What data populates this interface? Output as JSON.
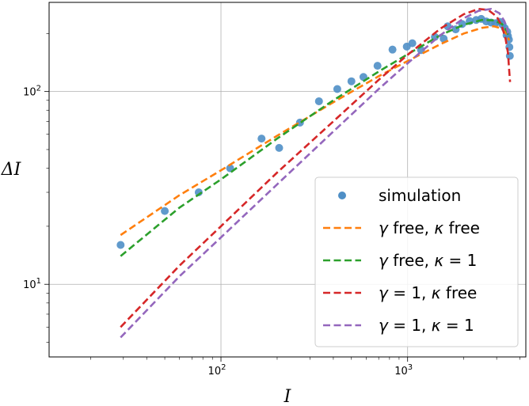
{
  "chart_data": {
    "type": "scatter",
    "xscale": "log",
    "yscale": "log",
    "xlim": [
      12,
      4300
    ],
    "ylim": [
      4.2,
      290
    ],
    "grid": true,
    "xlabel": "I",
    "ylabel": "ΔI",
    "legend_position": "lower-right",
    "x_ticks": [
      {
        "value": 100,
        "base": "10",
        "exp": "2"
      },
      {
        "value": 1000,
        "base": "10",
        "exp": "3"
      }
    ],
    "y_ticks": [
      {
        "value": 10,
        "base": "10",
        "exp": "1"
      },
      {
        "value": 100,
        "base": "10",
        "exp": "2"
      }
    ],
    "series": [
      {
        "name": "simulation",
        "kind": "scatter",
        "color": "#4f8fc6",
        "legend_label": [
          "simulation"
        ],
        "x": [
          29,
          50,
          76,
          112,
          165,
          205,
          265,
          335,
          420,
          500,
          580,
          690,
          830,
          990,
          1060,
          1180,
          1400,
          1560,
          1640,
          1810,
          1960,
          2150,
          2330,
          2480,
          2640,
          2800,
          2950,
          3100,
          3230,
          3320,
          3390,
          3420,
          3450,
          3490,
          3510,
          3530
        ],
        "y": [
          16,
          24,
          30,
          40,
          57,
          51,
          69,
          89,
          103,
          113,
          119,
          136,
          165,
          171,
          178,
          164,
          192,
          188,
          218,
          210,
          224,
          232,
          235,
          238,
          231,
          228,
          226,
          230,
          222,
          213,
          196,
          204,
          194,
          186,
          170,
          153
        ]
      },
      {
        "name": "γ free, κ free",
        "kind": "line",
        "color": "#ff7f0e",
        "legend_label": [
          "γ",
          " free, ",
          "κ",
          " free"
        ],
        "x": [
          29,
          60,
          100,
          200,
          400,
          700,
          1000,
          1500,
          2000,
          2500,
          2900,
          3200,
          3400,
          3500
        ],
        "y": [
          18,
          29,
          39,
          59,
          88,
          120,
          144,
          176,
          200,
          214,
          218,
          212,
          198,
          184
        ]
      },
      {
        "name": "γ free, κ = 1",
        "kind": "line",
        "color": "#2ca02c",
        "legend_label": [
          "γ",
          " free, ",
          "κ",
          " = 1"
        ],
        "x": [
          29,
          60,
          100,
          200,
          400,
          700,
          1000,
          1500,
          2000,
          2500,
          2900,
          3200,
          3400,
          3500
        ],
        "y": [
          14,
          25,
          35,
          57,
          90,
          127,
          156,
          196,
          222,
          235,
          234,
          224,
          206,
          190
        ]
      },
      {
        "name": "γ = 1, κ free",
        "kind": "line",
        "color": "#d62728",
        "legend_label": [
          "γ",
          " = 1, ",
          "κ",
          " free"
        ],
        "x": [
          29,
          60,
          100,
          200,
          400,
          700,
          1000,
          1500,
          2000,
          2400,
          2700,
          3000,
          3200,
          3350,
          3450,
          3500,
          3540
        ],
        "y": [
          6,
          12.5,
          20,
          38,
          70,
          115,
          155,
          212,
          252,
          268,
          265,
          245,
          218,
          188,
          158,
          130,
          112
        ]
      },
      {
        "name": "γ = 1, κ = 1",
        "kind": "line",
        "color": "#9467bd",
        "legend_label": [
          "γ",
          " = 1, ",
          "κ",
          " = 1"
        ],
        "x": [
          29,
          60,
          100,
          200,
          400,
          700,
          1000,
          1500,
          2000,
          2400,
          2800,
          3100,
          3300,
          3400,
          3450
        ],
        "y": [
          5.3,
          11,
          17.5,
          33,
          62,
          103,
          140,
          196,
          240,
          262,
          268,
          255,
          232,
          214,
          200
        ]
      }
    ]
  }
}
